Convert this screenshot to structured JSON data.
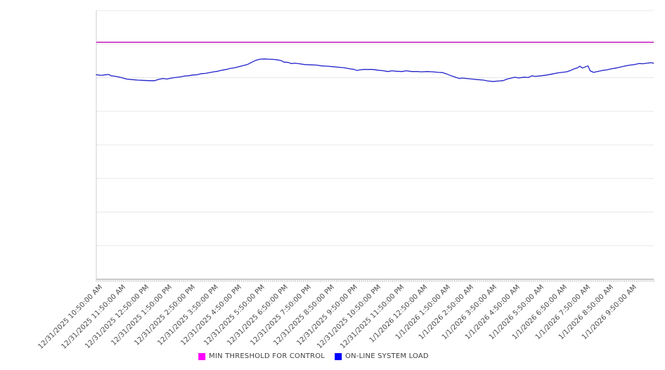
{
  "chart_data": {
    "type": "line",
    "title": "",
    "background_color": "#ffffff",
    "x_axis": {
      "labels": [
        "12/31/2025 10:50:00 AM",
        "12/31/2025 11:50:00 AM",
        "12/31/2025 12:50:00 PM",
        "12/31/2025 1:50:00 PM",
        "12/31/2025 2:50:00 PM",
        "12/31/2025 3:50:00 PM",
        "12/31/2025 4:50:00 PM",
        "12/31/2025 5:50:00 PM",
        "12/31/2025 6:50:00 PM",
        "12/31/2025 7:50:00 PM",
        "12/31/2025 8:50:00 PM",
        "12/31/2025 9:50:00 PM",
        "12/31/2025 10:50:00 PM",
        "12/31/2025 11:50:00 PM",
        "1/1/2026 12:50:00 AM",
        "1/1/2026 1:50:00 AM",
        "1/1/2026 2:50:00 AM",
        "1/1/2026 3:50:00 AM",
        "1/1/2026 4:50:00 AM",
        "1/1/2026 5:50:00 AM",
        "1/1/2026 6:50:00 AM",
        "1/1/2026 7:50:00 AM",
        "1/1/2026 8:50:00 AM",
        "1/1/2026 9:50:00 AM"
      ],
      "label_rotation_deg": -45,
      "label_interval_minutes": 60,
      "minor_tick_interval_minutes": 5,
      "span_hours": 24,
      "axis_line_color": "#9a9a9a",
      "tick_color": "#c9c9c9",
      "label_color": "#4a4a4a"
    },
    "y_axis": {
      "labels_visible": false,
      "unit": "unitless 0-100 scale (no y tick labels shown in chart)",
      "range": [
        0,
        100
      ],
      "gridline_count": 9,
      "gridline_color": "#e8e8e8",
      "axis_line_color": "#cccccc",
      "grid": "on"
    },
    "series": [
      {
        "name": "MIN THRESHOLD FOR CONTROL",
        "type": "constant-line",
        "legend_color": "#FF00FF",
        "line_color": "#C415BE",
        "line_width": 1.5,
        "value": 88.2
      },
      {
        "name": "ON-LINE SYSTEM LOAD",
        "type": "line",
        "legend_color": "#0000FF",
        "line_color": "#2222CC",
        "line_width": 1.3,
        "points_format": "[hours_after_start, value_0_100]",
        "points": [
          [
            0.0,
            76.1
          ],
          [
            0.24,
            75.9
          ],
          [
            0.39,
            76.1
          ],
          [
            0.54,
            76.2
          ],
          [
            0.64,
            75.7
          ],
          [
            0.85,
            75.5
          ],
          [
            1.06,
            75.1
          ],
          [
            1.3,
            74.5
          ],
          [
            1.54,
            74.3
          ],
          [
            1.78,
            74.1
          ],
          [
            2.03,
            74.0
          ],
          [
            2.27,
            73.9
          ],
          [
            2.51,
            73.9
          ],
          [
            2.69,
            74.4
          ],
          [
            2.87,
            74.7
          ],
          [
            3.05,
            74.5
          ],
          [
            3.24,
            74.9
          ],
          [
            3.42,
            75.1
          ],
          [
            3.6,
            75.3
          ],
          [
            3.78,
            75.6
          ],
          [
            3.96,
            75.7
          ],
          [
            4.14,
            76.0
          ],
          [
            4.33,
            76.1
          ],
          [
            4.51,
            76.5
          ],
          [
            4.69,
            76.6
          ],
          [
            4.87,
            76.9
          ],
          [
            5.05,
            77.2
          ],
          [
            5.23,
            77.4
          ],
          [
            5.41,
            77.8
          ],
          [
            5.6,
            78.1
          ],
          [
            5.78,
            78.5
          ],
          [
            5.96,
            78.7
          ],
          [
            6.14,
            79.1
          ],
          [
            6.32,
            79.5
          ],
          [
            6.5,
            79.9
          ],
          [
            6.68,
            80.7
          ],
          [
            6.87,
            81.5
          ],
          [
            7.05,
            81.9
          ],
          [
            7.23,
            82.0
          ],
          [
            7.41,
            81.9
          ],
          [
            7.65,
            81.8
          ],
          [
            7.83,
            81.6
          ],
          [
            7.95,
            81.4
          ],
          [
            8.08,
            80.8
          ],
          [
            8.26,
            80.7
          ],
          [
            8.38,
            80.3
          ],
          [
            8.56,
            80.4
          ],
          [
            8.74,
            80.2
          ],
          [
            8.98,
            79.9
          ],
          [
            9.23,
            79.8
          ],
          [
            9.47,
            79.7
          ],
          [
            9.71,
            79.4
          ],
          [
            9.95,
            79.3
          ],
          [
            10.19,
            79.1
          ],
          [
            10.44,
            78.9
          ],
          [
            10.68,
            78.7
          ],
          [
            10.92,
            78.3
          ],
          [
            11.1,
            78.1
          ],
          [
            11.22,
            77.7
          ],
          [
            11.34,
            77.9
          ],
          [
            11.52,
            78.1
          ],
          [
            11.71,
            78.1
          ],
          [
            11.89,
            78.1
          ],
          [
            12.13,
            77.8
          ],
          [
            12.37,
            77.6
          ],
          [
            12.55,
            77.3
          ],
          [
            12.73,
            77.6
          ],
          [
            12.92,
            77.4
          ],
          [
            13.16,
            77.3
          ],
          [
            13.34,
            77.6
          ],
          [
            13.58,
            77.3
          ],
          [
            13.82,
            77.3
          ],
          [
            14.0,
            77.2
          ],
          [
            14.25,
            77.3
          ],
          [
            14.49,
            77.2
          ],
          [
            14.73,
            77.0
          ],
          [
            14.91,
            76.9
          ],
          [
            15.09,
            76.4
          ],
          [
            15.28,
            75.7
          ],
          [
            15.46,
            75.2
          ],
          [
            15.64,
            74.7
          ],
          [
            15.76,
            74.9
          ],
          [
            15.94,
            74.7
          ],
          [
            16.18,
            74.5
          ],
          [
            16.42,
            74.3
          ],
          [
            16.67,
            74.1
          ],
          [
            16.85,
            73.8
          ],
          [
            17.09,
            73.6
          ],
          [
            17.33,
            73.8
          ],
          [
            17.51,
            73.9
          ],
          [
            17.69,
            74.5
          ],
          [
            17.88,
            74.9
          ],
          [
            18.03,
            75.2
          ],
          [
            18.18,
            74.9
          ],
          [
            18.42,
            75.2
          ],
          [
            18.6,
            75.1
          ],
          [
            18.75,
            75.7
          ],
          [
            18.9,
            75.5
          ],
          [
            19.15,
            75.7
          ],
          [
            19.39,
            76.0
          ],
          [
            19.63,
            76.4
          ],
          [
            19.87,
            76.8
          ],
          [
            20.05,
            77.0
          ],
          [
            20.24,
            77.2
          ],
          [
            20.42,
            77.7
          ],
          [
            20.57,
            78.3
          ],
          [
            20.72,
            78.7
          ],
          [
            20.81,
            79.3
          ],
          [
            20.93,
            78.6
          ],
          [
            21.05,
            79.0
          ],
          [
            21.17,
            79.4
          ],
          [
            21.26,
            77.6
          ],
          [
            21.41,
            77.0
          ],
          [
            21.57,
            77.3
          ],
          [
            21.78,
            77.7
          ],
          [
            21.96,
            77.9
          ],
          [
            22.17,
            78.3
          ],
          [
            22.38,
            78.6
          ],
          [
            22.57,
            79.0
          ],
          [
            22.78,
            79.4
          ],
          [
            22.99,
            79.7
          ],
          [
            23.17,
            79.9
          ],
          [
            23.38,
            80.3
          ],
          [
            23.53,
            80.2
          ],
          [
            23.69,
            80.4
          ],
          [
            23.9,
            80.6
          ],
          [
            23.99,
            80.4
          ]
        ]
      }
    ],
    "legend": {
      "position": "bottom-center",
      "items": [
        {
          "label": "MIN THRESHOLD FOR CONTROL",
          "color": "#FF00FF"
        },
        {
          "label": "ON-LINE SYSTEM LOAD",
          "color": "#0000FF"
        }
      ]
    }
  }
}
